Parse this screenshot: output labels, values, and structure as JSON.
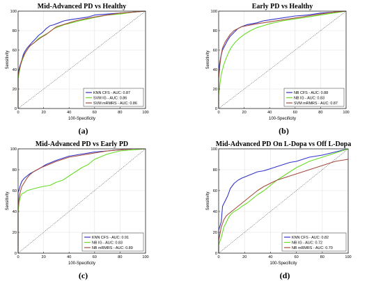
{
  "figure": {
    "background": "#ffffff",
    "colors": {
      "blue": "#3333cc",
      "green": "#66dd22",
      "red": "#a54b3c",
      "diagonal": "#444444"
    }
  },
  "chart_data": [
    {
      "type": "line",
      "panel_label": "(a)",
      "title": "Mid-Advanced PD vs Healthy",
      "xlabel": "100-Specificity",
      "ylabel": "Sensitivity",
      "xlim": [
        0,
        100
      ],
      "ylim": [
        0,
        100
      ],
      "xticks": [
        0,
        20,
        40,
        60,
        80,
        100
      ],
      "yticks": [
        0,
        20,
        40,
        60,
        80,
        100
      ],
      "xtick_labels": [
        "0",
        "20",
        "40",
        "60",
        "80",
        "100"
      ],
      "ytick_labels": [
        "0",
        "20",
        "40",
        "60",
        "80",
        "100"
      ],
      "grid": true,
      "legend_position": "bottom-right",
      "series": [
        {
          "name": "KNN CFS - AUC: 0.87",
          "color": "#3333cc",
          "x": [
            0,
            0,
            1,
            2,
            3,
            4,
            5,
            7,
            9,
            11,
            14,
            16,
            19,
            22,
            25,
            28,
            32,
            36,
            40,
            45,
            50,
            55,
            60,
            70,
            80,
            90,
            100
          ],
          "y": [
            0,
            36,
            42,
            46,
            50,
            55,
            58,
            62,
            65,
            68,
            72,
            75,
            78,
            82,
            85,
            86,
            88,
            90,
            91,
            92,
            93,
            94,
            96,
            97,
            98,
            99,
            100
          ]
        },
        {
          "name": "SVM IG - AUC: 0.86",
          "color": "#66dd22",
          "x": [
            0,
            0,
            1,
            2,
            4,
            6,
            8,
            10,
            13,
            16,
            20,
            24,
            28,
            32,
            36,
            42,
            48,
            55,
            62,
            70,
            80,
            90,
            100
          ],
          "y": [
            0,
            30,
            38,
            45,
            52,
            58,
            62,
            65,
            68,
            72,
            75,
            78,
            82,
            84,
            86,
            88,
            90,
            92,
            94,
            96,
            97,
            99,
            100
          ]
        },
        {
          "name": "SVM mRMRS - AUC: 0.86",
          "color": "#a54b3c",
          "x": [
            0,
            0,
            1,
            2,
            3,
            5,
            7,
            9,
            12,
            15,
            18,
            22,
            26,
            30,
            35,
            40,
            45,
            52,
            60,
            70,
            80,
            90,
            100
          ],
          "y": [
            0,
            34,
            40,
            45,
            50,
            56,
            60,
            64,
            67,
            70,
            73,
            76,
            80,
            84,
            86,
            88,
            90,
            92,
            94,
            96,
            98,
            99,
            100
          ]
        }
      ]
    },
    {
      "type": "line",
      "panel_label": "(b)",
      "title": "Early PD vs Healthy",
      "xlabel": "100-Specificity",
      "ylabel": "Sensitivity",
      "xlim": [
        0,
        100
      ],
      "ylim": [
        0,
        100
      ],
      "xticks": [
        0,
        20,
        40,
        60,
        80,
        100
      ],
      "yticks": [
        0,
        20,
        40,
        60,
        80,
        100
      ],
      "xtick_labels": [
        "0",
        "20",
        "40",
        "60",
        "80",
        "100"
      ],
      "ytick_labels": [
        "0",
        "20",
        "40",
        "60",
        "80",
        "100"
      ],
      "grid": true,
      "legend_position": "bottom-right",
      "series": [
        {
          "name": "NB CFS - AUC: 0.88",
          "color": "#3333cc",
          "x": [
            0,
            0,
            1,
            2,
            3,
            5,
            7,
            9,
            12,
            15,
            18,
            22,
            26,
            30,
            35,
            40,
            50,
            60,
            70,
            80,
            90,
            100
          ],
          "y": [
            0,
            40,
            48,
            55,
            60,
            65,
            70,
            74,
            78,
            82,
            84,
            86,
            87,
            88,
            90,
            91,
            93,
            95,
            96,
            98,
            99,
            100
          ]
        },
        {
          "name": "NB IG - AUC: 0.83",
          "color": "#66dd22",
          "x": [
            0,
            0,
            1,
            2,
            4,
            6,
            8,
            10,
            13,
            16,
            20,
            25,
            30,
            35,
            40,
            50,
            60,
            70,
            80,
            90,
            100
          ],
          "y": [
            0,
            14,
            25,
            35,
            45,
            52,
            58,
            63,
            68,
            72,
            76,
            80,
            83,
            85,
            87,
            90,
            92,
            94,
            96,
            98,
            100
          ]
        },
        {
          "name": "SVM mRMRS - AUC: 0.87",
          "color": "#a54b3c",
          "x": [
            0,
            0,
            1,
            2,
            3,
            5,
            7,
            9,
            12,
            15,
            18,
            22,
            26,
            30,
            35,
            40,
            50,
            60,
            70,
            80,
            90,
            100
          ],
          "y": [
            0,
            30,
            45,
            55,
            62,
            68,
            72,
            76,
            80,
            82,
            84,
            85,
            86,
            87,
            88,
            89,
            91,
            93,
            95,
            97,
            99,
            100
          ]
        }
      ]
    },
    {
      "type": "line",
      "panel_label": "(c)",
      "title": "Mid-Advanced PD vs Early PD",
      "xlabel": "100-Specificity",
      "ylabel": "Sensitivity",
      "xlim": [
        0,
        100
      ],
      "ylim": [
        0,
        100
      ],
      "xticks": [
        0,
        20,
        40,
        60,
        80,
        100
      ],
      "yticks": [
        0,
        20,
        40,
        60,
        80,
        100
      ],
      "xtick_labels": [
        "0",
        "20",
        "40",
        "60",
        "80",
        "100"
      ],
      "ytick_labels": [
        "0",
        "20",
        "40",
        "60",
        "80",
        "100"
      ],
      "grid": true,
      "legend_position": "bottom-right",
      "series": [
        {
          "name": "KNN CFS - AUC: 0.91",
          "color": "#3333cc",
          "x": [
            0,
            0,
            1,
            2,
            3,
            5,
            7,
            9,
            12,
            15,
            18,
            22,
            26,
            30,
            35,
            40,
            50,
            60,
            70,
            80,
            90,
            100
          ],
          "y": [
            0,
            58,
            62,
            66,
            69,
            72,
            74,
            76,
            78,
            80,
            82,
            85,
            87,
            89,
            91,
            93,
            95,
            97,
            98,
            99,
            100,
            100
          ]
        },
        {
          "name": "NB IG - AUC: 0.83",
          "color": "#66dd22",
          "x": [
            0,
            0,
            1,
            2,
            3,
            5,
            7,
            10,
            13,
            16,
            20,
            25,
            30,
            35,
            40,
            45,
            50,
            55,
            60,
            70,
            80,
            90,
            100
          ],
          "y": [
            0,
            40,
            50,
            55,
            57,
            58,
            60,
            61,
            62,
            63,
            64,
            65,
            68,
            70,
            74,
            78,
            82,
            85,
            90,
            95,
            98,
            99,
            100
          ]
        },
        {
          "name": "NB mRMRS - AUC: 0.89",
          "color": "#a54b3c",
          "x": [
            0,
            0,
            1,
            2,
            3,
            5,
            7,
            9,
            12,
            15,
            18,
            22,
            26,
            30,
            35,
            40,
            50,
            60,
            70,
            80,
            90,
            100
          ],
          "y": [
            0,
            45,
            55,
            60,
            64,
            68,
            72,
            75,
            78,
            80,
            82,
            84,
            86,
            88,
            90,
            92,
            94,
            96,
            98,
            99,
            100,
            100
          ]
        }
      ]
    },
    {
      "type": "line",
      "panel_label": "(d)",
      "title": "Mid-Advanced PD On L-Dopa vs Off L-Dopa",
      "xlabel": "100-Specificity",
      "ylabel": "Sensitivity",
      "xlim": [
        0,
        100
      ],
      "ylim": [
        0,
        100
      ],
      "xticks": [
        0,
        20,
        40,
        60,
        80,
        100
      ],
      "yticks": [
        0,
        20,
        40,
        60,
        80,
        100
      ],
      "xtick_labels": [
        "0",
        "20",
        "40",
        "60",
        "80",
        "100"
      ],
      "ytick_labels": [
        "0",
        "20",
        "40",
        "60",
        "80",
        "100"
      ],
      "grid": true,
      "legend_position": "bottom-right",
      "series": [
        {
          "name": "KNN CFS - AUC: 0.82",
          "color": "#3333cc",
          "x": [
            0,
            0,
            1,
            2,
            3,
            5,
            7,
            9,
            12,
            15,
            18,
            22,
            26,
            30,
            35,
            40,
            45,
            50,
            55,
            60,
            65,
            70,
            80,
            90,
            100
          ],
          "y": [
            0,
            22,
            26,
            30,
            45,
            50,
            55,
            62,
            67,
            70,
            72,
            74,
            76,
            78,
            79,
            81,
            83,
            85,
            87,
            88,
            90,
            92,
            94,
            97,
            100
          ]
        },
        {
          "name": "NB IG - AUC: 0.72",
          "color": "#66dd22",
          "x": [
            0,
            0,
            2,
            4,
            6,
            8,
            10,
            12,
            15,
            18,
            22,
            26,
            30,
            35,
            40,
            45,
            50,
            55,
            60,
            65,
            70,
            80,
            90,
            100
          ],
          "y": [
            0,
            8,
            15,
            25,
            30,
            35,
            38,
            40,
            42,
            45,
            48,
            52,
            56,
            60,
            65,
            70,
            74,
            78,
            82,
            85,
            88,
            92,
            96,
            100
          ]
        },
        {
          "name": "NB mRMRS - AUC: 0.70",
          "color": "#a54b3c",
          "x": [
            0,
            0,
            2,
            4,
            6,
            8,
            10,
            13,
            16,
            20,
            25,
            30,
            35,
            40,
            45,
            50,
            55,
            60,
            70,
            80,
            90,
            100
          ],
          "y": [
            0,
            12,
            25,
            32,
            36,
            38,
            40,
            43,
            46,
            50,
            55,
            60,
            64,
            67,
            70,
            72,
            74,
            76,
            80,
            84,
            88,
            90
          ]
        }
      ]
    }
  ]
}
